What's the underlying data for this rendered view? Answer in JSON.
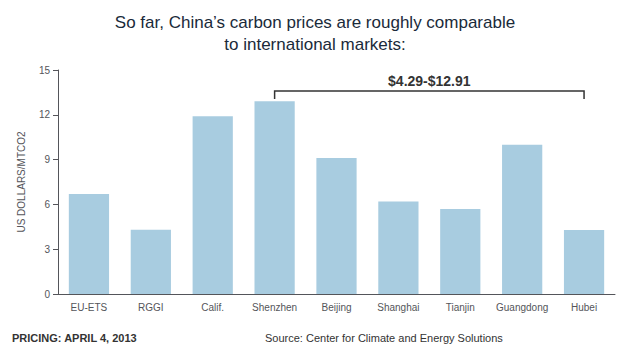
{
  "chart_data": {
    "type": "bar",
    "title": "So far, China’s carbon prices are roughly comparable\nto international markets:",
    "categories": [
      "EU-ETS",
      "RGGI",
      "Calif.",
      "Shenzhen",
      "Beijing",
      "Shanghai",
      "Tianjin",
      "Guangdong",
      "Hubei"
    ],
    "values": [
      6.7,
      4.3,
      11.9,
      12.91,
      9.1,
      6.2,
      5.7,
      10.0,
      4.29
    ],
    "color": "#a8cce0",
    "ylabel": "US DOLLARS/MTCO2",
    "ylim": [
      0,
      15
    ],
    "yticks": [
      0,
      3,
      6,
      9,
      12,
      15
    ],
    "grid": false,
    "annotations": [
      {
        "text": "$4.29-$12.91",
        "x_start": "Shenzhen",
        "x_end": "Hubei",
        "y": 13.6
      }
    ],
    "footnotes": [
      "PRICING: APRIL 4, 2013",
      "Source: Center for Climate and Energy Solutions"
    ]
  }
}
